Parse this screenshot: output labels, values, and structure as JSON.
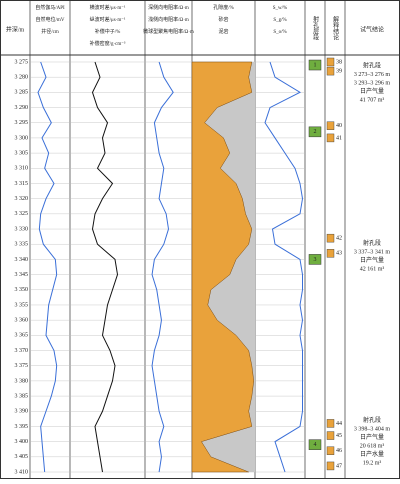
{
  "chart_data": {
    "type": "well-log",
    "depth_label": "井深/m",
    "ylim": [
      3272.7,
      3412.3
    ],
    "yticks": [
      {
        "value": 3275,
        "label": "3 275"
      },
      {
        "value": 3280,
        "label": "3 280"
      },
      {
        "value": 3285,
        "label": "3 285"
      },
      {
        "value": 3290,
        "label": "3 290"
      },
      {
        "value": 3295,
        "label": "3 295"
      },
      {
        "value": 3300,
        "label": "3 300"
      },
      {
        "value": 3305,
        "label": "3 305"
      },
      {
        "value": 3310,
        "label": "3 310"
      },
      {
        "value": 3315,
        "label": "3 315"
      },
      {
        "value": 3320,
        "label": "3 320"
      },
      {
        "value": 3325,
        "label": "3 325"
      },
      {
        "value": 3330,
        "label": "3 330"
      },
      {
        "value": 3335,
        "label": "3 335"
      },
      {
        "value": 3340,
        "label": "3 340"
      },
      {
        "value": 3345,
        "label": "3 345"
      },
      {
        "value": 3350,
        "label": "3 350"
      },
      {
        "value": 3355,
        "label": "3 355"
      },
      {
        "value": 3360,
        "label": "3 360"
      },
      {
        "value": 3365,
        "label": "3 365"
      },
      {
        "value": 3370,
        "label": "3 370"
      },
      {
        "value": 3375,
        "label": "3 375"
      },
      {
        "value": 3380,
        "label": "3 380"
      },
      {
        "value": 3385,
        "label": "3 385"
      },
      {
        "value": 3390,
        "label": "3 390"
      },
      {
        "value": 3395,
        "label": "3 395"
      },
      {
        "value": 3400,
        "label": "3 400"
      },
      {
        "value": 3405,
        "label": "3 405"
      },
      {
        "value": 3410,
        "label": "3 410"
      }
    ],
    "depths": [
      3275,
      3280,
      3285,
      3290,
      3295,
      3300,
      3305,
      3310,
      3315,
      3320,
      3325,
      3330,
      3335,
      3340,
      3345,
      3350,
      3355,
      3360,
      3365,
      3370,
      3375,
      3380,
      3385,
      3390,
      3395,
      3400,
      3405,
      3410
    ],
    "tracks": [
      {
        "headers": [
          "自然伽马/API",
          "自然电位/mV",
          "井径/cm"
        ],
        "xlim": [
          0,
          150
        ],
        "series": [
          {
            "name": "自然伽马",
            "color": "#3a6fd8",
            "values": [
              40,
              60,
              30,
              50,
              80,
              45,
              70,
              55,
              90,
              60,
              40,
              35,
              50,
              95,
              100,
              85,
              70,
              65,
              60,
              90,
              100,
              95,
              80,
              60,
              40,
              45,
              50,
              55
            ]
          }
        ]
      },
      {
        "headers": [
          "横波时差/μs·m⁻¹",
          "纵波时差/μs·m⁻¹",
          "补偿中子/%",
          "补偿密度/g·cm⁻³"
        ],
        "xlim": [
          150,
          450
        ],
        "series": [
          {
            "name": "纵波时差",
            "color": "#111111",
            "values": [
              250,
              270,
              240,
              260,
              300,
              280,
              290,
              260,
              320,
              280,
              250,
              240,
              260,
              330,
              340,
              320,
              300,
              290,
              280,
              310,
              330,
              320,
              300,
              280,
              250,
              260,
              270,
              280
            ]
          }
        ]
      },
      {
        "headers": [
          "深侧向电阻率/Ω·m",
          "浅侧向电阻率/Ω·m",
          "微球型聚焦电阻率/Ω·m"
        ],
        "xlim": [
          0,
          100
        ],
        "series": [
          {
            "name": "深侧向电阻率",
            "color": "#3a6fd8",
            "values": [
              30,
              40,
              60,
              35,
              20,
              25,
              30,
              40,
              35,
              30,
              45,
              50,
              40,
              20,
              15,
              25,
              30,
              35,
              30,
              20,
              15,
              20,
              25,
              30,
              40,
              30,
              35,
              30
            ]
          }
        ]
      },
      {
        "headers": [
          "孔隙度/%",
          "砂岩",
          "泥岩"
        ],
        "xlim": [
          0,
          100
        ],
        "area": true,
        "series": [
          {
            "name": "砂岩",
            "color": "#e9a23b",
            "values": [
              95,
              90,
              95,
              40,
              20,
              50,
              60,
              45,
              70,
              80,
              85,
              95,
              90,
              70,
              60,
              30,
              25,
              40,
              70,
              90,
              95,
              98,
              95,
              90,
              95,
              15,
              30,
              90
            ]
          }
        ]
      },
      {
        "headers": [
          "S_w/%",
          "S_g/%",
          "S_o/%"
        ],
        "xlim": [
          0,
          100
        ],
        "series": [
          {
            "name": "S_w",
            "color": "#3a6fd8",
            "values": [
              30,
              40,
              90,
              30,
              20,
              40,
              60,
              80,
              90,
              95,
              90,
              35,
              40,
              90,
              95,
              95,
              90,
              95,
              90,
              95,
              95,
              95,
              95,
              95,
              90,
              40,
              50,
              60
            ]
          }
        ]
      }
    ],
    "perforation_header": "射孔层段",
    "perforations": [
      {
        "label": "1",
        "depth": 3276
      },
      {
        "label": "2",
        "depth": 3298
      },
      {
        "label": "3",
        "depth": 3340
      },
      {
        "label": "4",
        "depth": 3401
      }
    ],
    "layer_header": "解释结论",
    "layers": [
      {
        "label": "38",
        "depth": 3275
      },
      {
        "label": "39",
        "depth": 3278
      },
      {
        "label": "40",
        "depth": 3296
      },
      {
        "label": "41",
        "depth": 3300
      },
      {
        "label": "42",
        "depth": 3333
      },
      {
        "label": "43",
        "depth": 3338
      },
      {
        "label": "44",
        "depth": 3394
      },
      {
        "label": "45",
        "depth": 3398
      },
      {
        "label": "46",
        "depth": 3403
      },
      {
        "label": "47",
        "depth": 3408
      }
    ],
    "test_header": "试气结论",
    "tests": [
      {
        "depth": 3283,
        "lines": [
          "射孔段",
          "3 273–3 276 m",
          "3 293–3 296 m",
          "日产气量",
          "41 707 m³"
        ]
      },
      {
        "depth": 3340,
        "lines": [
          "射孔段",
          "3 337–3 341 m",
          "日产气量",
          "42 161 m³"
        ]
      },
      {
        "depth": 3401,
        "lines": [
          "射孔段",
          "3 398–3 404 m",
          "日产气量",
          "20 618 m³",
          "日产水量",
          "19.2 m³"
        ]
      }
    ]
  }
}
